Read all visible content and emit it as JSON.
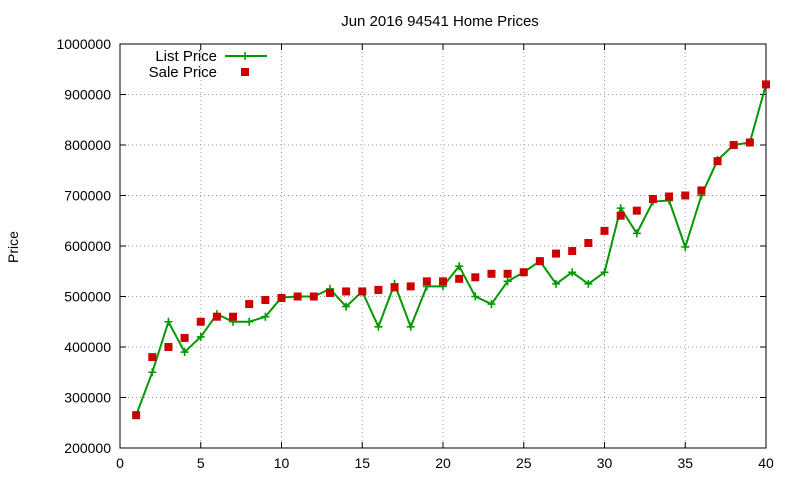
{
  "chart_data": {
    "type": "scatter",
    "title": "Jun 2016 94541 Home Prices",
    "xlabel": "",
    "ylabel": "Price",
    "xlim": [
      0,
      40
    ],
    "ylim": [
      200000,
      1000000
    ],
    "x_ticks": [
      0,
      5,
      10,
      15,
      20,
      25,
      30,
      35,
      40
    ],
    "y_ticks": [
      200000,
      300000,
      400000,
      500000,
      600000,
      700000,
      800000,
      900000,
      1000000
    ],
    "x_tick_labels": [
      "0",
      "5",
      "10",
      "15",
      "20",
      "25",
      "30",
      "35",
      "40"
    ],
    "y_tick_labels": [
      "200000",
      "300000",
      "400000",
      "500000",
      "600000",
      "700000",
      "800000",
      "900000",
      "1000000"
    ],
    "grid": true,
    "legend_position": "top-left",
    "series": [
      {
        "name": "List Price",
        "style": "line-with-plus-markers",
        "color": "#009900",
        "x": [
          1,
          2,
          3,
          4,
          5,
          6,
          7,
          8,
          9,
          10,
          11,
          12,
          13,
          14,
          15,
          16,
          17,
          18,
          19,
          20,
          21,
          22,
          23,
          24,
          25,
          26,
          27,
          28,
          29,
          30,
          31,
          32,
          33,
          34,
          35,
          36,
          37,
          38,
          39,
          40
        ],
        "values": [
          265000,
          350000,
          450000,
          390000,
          420000,
          465000,
          450000,
          450000,
          460000,
          498000,
          500000,
          500000,
          515000,
          480000,
          510000,
          440000,
          525000,
          440000,
          520000,
          520000,
          560000,
          500000,
          485000,
          530000,
          548000,
          570000,
          525000,
          548000,
          525000,
          548000,
          675000,
          625000,
          688000,
          690000,
          598000,
          700000,
          770000,
          800000,
          805000,
          920000
        ]
      },
      {
        "name": "Sale Price",
        "style": "square-markers",
        "color": "#cc0000",
        "x": [
          1,
          2,
          3,
          4,
          5,
          6,
          7,
          8,
          9,
          10,
          11,
          12,
          13,
          14,
          15,
          16,
          17,
          18,
          19,
          20,
          21,
          22,
          23,
          24,
          25,
          26,
          27,
          28,
          29,
          30,
          31,
          32,
          33,
          34,
          35,
          36,
          37,
          38,
          39,
          40
        ],
        "values": [
          265000,
          380000,
          400000,
          418000,
          450000,
          460000,
          460000,
          485000,
          493000,
          497000,
          500000,
          500000,
          507000,
          510000,
          510000,
          513000,
          518000,
          520000,
          530000,
          530000,
          535000,
          538000,
          545000,
          545000,
          548000,
          570000,
          585000,
          590000,
          606000,
          630000,
          660000,
          670000,
          693000,
          698000,
          700000,
          710000,
          768000,
          800000,
          805000,
          920000
        ]
      }
    ]
  }
}
